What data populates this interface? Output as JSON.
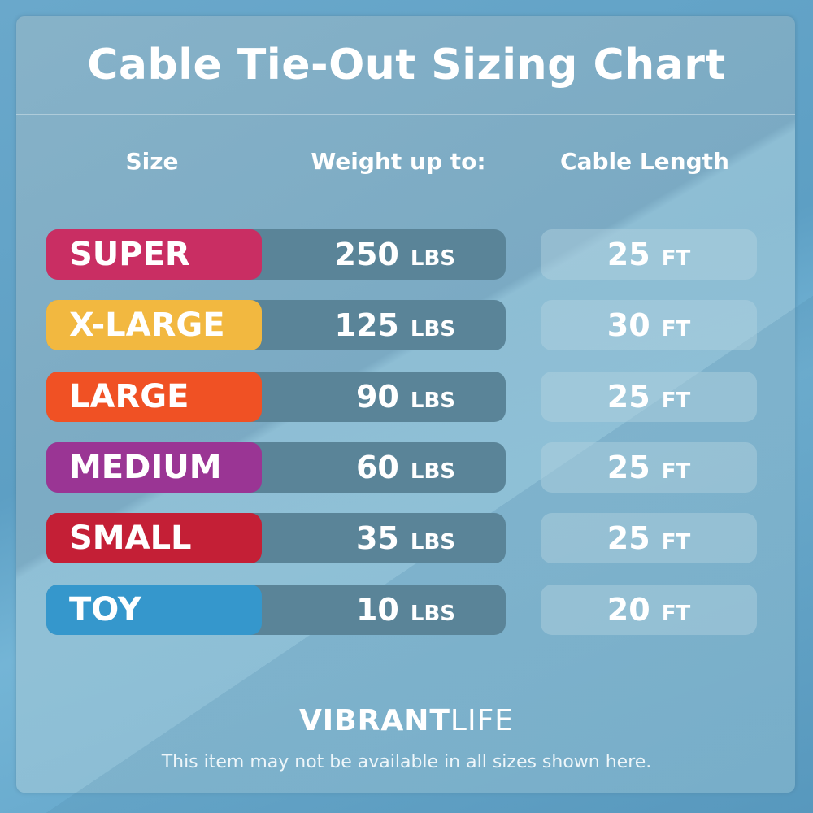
{
  "title": "Cable Tie-Out Sizing Chart",
  "columns": {
    "size": "Size",
    "weight": "Weight up to:",
    "cable": "Cable Length"
  },
  "rows": [
    {
      "size": "SUPER",
      "weight": "250",
      "weight_unit": "LBS",
      "cable": "25",
      "cable_unit": "FT",
      "color": "#c92e63"
    },
    {
      "size": "X-LARGE",
      "weight": "125",
      "weight_unit": "LBS",
      "cable": "30",
      "cable_unit": "FT",
      "color": "#f2b840"
    },
    {
      "size": "LARGE",
      "weight": "90",
      "weight_unit": "LBS",
      "cable": "25",
      "cable_unit": "FT",
      "color": "#f05124"
    },
    {
      "size": "MEDIUM",
      "weight": "60",
      "weight_unit": "LBS",
      "cable": "25",
      "cable_unit": "FT",
      "color": "#9a3594"
    },
    {
      "size": "SMALL",
      "weight": "35",
      "weight_unit": "LBS",
      "cable": "25",
      "cable_unit": "FT",
      "color": "#c41f36"
    },
    {
      "size": "TOY",
      "weight": "10",
      "weight_unit": "LBS",
      "cable": "20",
      "cable_unit": "FT",
      "color": "#3597cc"
    }
  ],
  "brand": {
    "bold": "VIBRANT",
    "light": "LIFE"
  },
  "note": "This item may not be available in all sizes shown here."
}
